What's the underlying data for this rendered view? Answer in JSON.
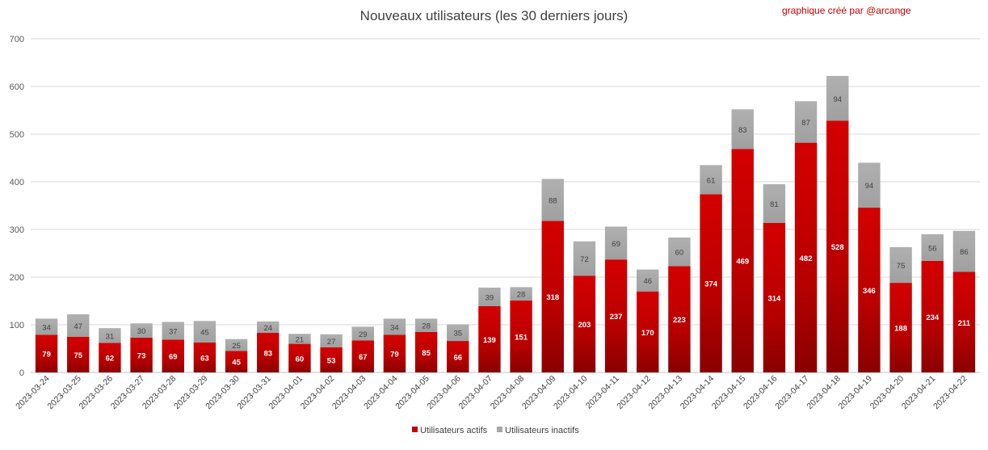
{
  "chart_data": {
    "type": "bar",
    "stacked": true,
    "title": "Nouveaux utilisateurs  (les 30 derniers  jours)",
    "annotation": "graphique créé par @arcange",
    "categories": [
      "2023-03-24",
      "2023-03-25",
      "2023-03-26",
      "2023-03-27",
      "2023-03-28",
      "2023-03-29",
      "2023-03-30",
      "2023-03-31",
      "2023-04-01",
      "2023-04-02",
      "2023-04-03",
      "2023-04-04",
      "2023-04-05",
      "2023-04-06",
      "2023-04-07",
      "2023-04-08",
      "2023-04-09",
      "2023-04-10",
      "2023-04-11",
      "2023-04-12",
      "2023-04-13",
      "2023-04-14",
      "2023-04-15",
      "2023-04-16",
      "2023-04-17",
      "2023-04-18",
      "2023-04-19",
      "2023-04-20",
      "2023-04-21",
      "2023-04-22"
    ],
    "series": [
      {
        "name": "Utilisateurs actifs",
        "color": "#c00000",
        "values": [
          79,
          75,
          62,
          73,
          69,
          63,
          45,
          83,
          60,
          53,
          67,
          79,
          85,
          66,
          139,
          151,
          318,
          203,
          237,
          170,
          223,
          374,
          469,
          314,
          482,
          528,
          346,
          188,
          234,
          211
        ]
      },
      {
        "name": "Utilisateurs inactifs",
        "color": "#a6a6a6",
        "values": [
          34,
          47,
          31,
          30,
          37,
          45,
          25,
          24,
          21,
          27,
          29,
          34,
          28,
          35,
          39,
          28,
          88,
          72,
          69,
          46,
          60,
          61,
          83,
          81,
          87,
          94,
          94,
          75,
          56,
          86
        ]
      }
    ],
    "ylim": [
      0,
      700
    ],
    "yticks": [
      0,
      100,
      200,
      300,
      400,
      500,
      600,
      700
    ],
    "grid": true,
    "legend_position": "bottom"
  }
}
